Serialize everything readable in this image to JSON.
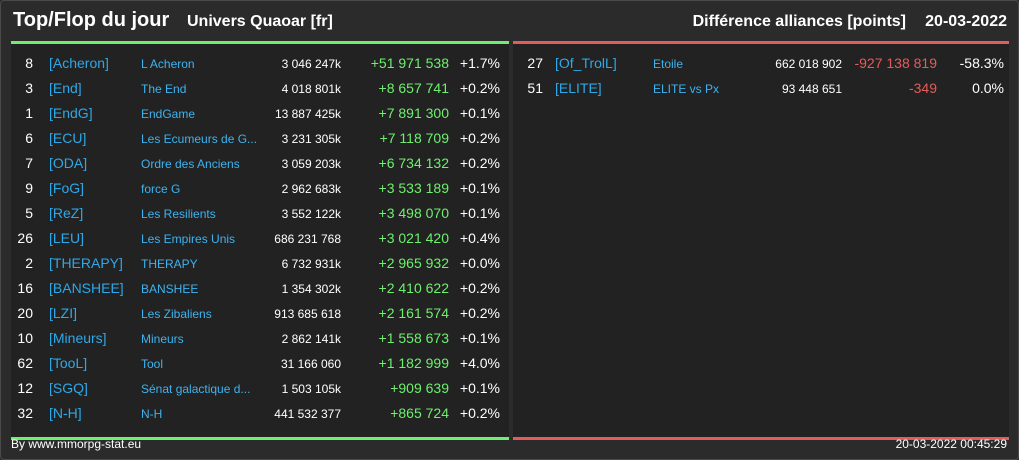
{
  "header": {
    "title": "Top/Flop du jour",
    "universe": "Univers Quaoar [fr]",
    "subtitle": "Différence alliances [points]",
    "date": "20-03-2022"
  },
  "colors": {
    "gain": "#6ef06e",
    "loss": "#e25c5c",
    "tag": "#2ea8e8",
    "background": "#2b2b2b"
  },
  "top": [
    {
      "rank": "8",
      "tag": "[Acheron]",
      "name": "L Acheron",
      "points": "3 046 247k",
      "delta": "+51 971 538",
      "pct": "+1.7%"
    },
    {
      "rank": "3",
      "tag": "[End]",
      "name": "The End",
      "points": "4 018 801k",
      "delta": "+8 657 741",
      "pct": "+0.2%"
    },
    {
      "rank": "1",
      "tag": "[EndG]",
      "name": "EndGame",
      "points": "13 887 425k",
      "delta": "+7 891 300",
      "pct": "+0.1%"
    },
    {
      "rank": "6",
      "tag": "[ECU]",
      "name": "Les Ecumeurs de G...",
      "points": "3 231 305k",
      "delta": "+7 118 709",
      "pct": "+0.2%"
    },
    {
      "rank": "7",
      "tag": "[ODA]",
      "name": "Ordre des Anciens",
      "points": "3 059 203k",
      "delta": "+6 734 132",
      "pct": "+0.2%"
    },
    {
      "rank": "9",
      "tag": "[FoG]",
      "name": "force G",
      "points": "2 962 683k",
      "delta": "+3 533 189",
      "pct": "+0.1%"
    },
    {
      "rank": "5",
      "tag": "[ReZ]",
      "name": "Les Resilients",
      "points": "3 552 122k",
      "delta": "+3 498 070",
      "pct": "+0.1%"
    },
    {
      "rank": "26",
      "tag": "[LEU]",
      "name": "Les Empires Unis",
      "points": "686 231 768",
      "delta": "+3 021 420",
      "pct": "+0.4%"
    },
    {
      "rank": "2",
      "tag": "[THERAPY]",
      "name": "THERAPY",
      "points": "6 732 931k",
      "delta": "+2 965 932",
      "pct": "+0.0%"
    },
    {
      "rank": "16",
      "tag": "[BANSHEE]",
      "name": "BANSHEE",
      "points": "1 354 302k",
      "delta": "+2 410 622",
      "pct": "+0.2%"
    },
    {
      "rank": "20",
      "tag": "[LZI]",
      "name": "Les Zibaliens",
      "points": "913 685 618",
      "delta": "+2 161 574",
      "pct": "+0.2%"
    },
    {
      "rank": "10",
      "tag": "[Mineurs]",
      "name": "Mineurs",
      "points": "2 862 141k",
      "delta": "+1 558 673",
      "pct": "+0.1%"
    },
    {
      "rank": "62",
      "tag": "[TooL]",
      "name": "Tool",
      "points": "31 166 060",
      "delta": "+1 182 999",
      "pct": "+4.0%"
    },
    {
      "rank": "12",
      "tag": "[SGQ]",
      "name": "Sénat galactique d...",
      "points": "1 503 105k",
      "delta": "+909 639",
      "pct": "+0.1%"
    },
    {
      "rank": "32",
      "tag": "[N-H]",
      "name": "N-H",
      "points": "441 532 377",
      "delta": "+865 724",
      "pct": "+0.2%"
    }
  ],
  "flop": [
    {
      "rank": "27",
      "tag": "[Of_TrolL]",
      "name": "Etoile",
      "points": "662 018 902",
      "delta": "-927 138 819",
      "pct": "-58.3%"
    },
    {
      "rank": "51",
      "tag": "[ELITE]",
      "name": "ELITE vs Px",
      "points": "93 448 651",
      "delta": "-349",
      "pct": "0.0%"
    }
  ],
  "footer": {
    "credit": "By www.mmorpg-stat.eu",
    "timestamp": "20-03-2022 00:45:29"
  }
}
